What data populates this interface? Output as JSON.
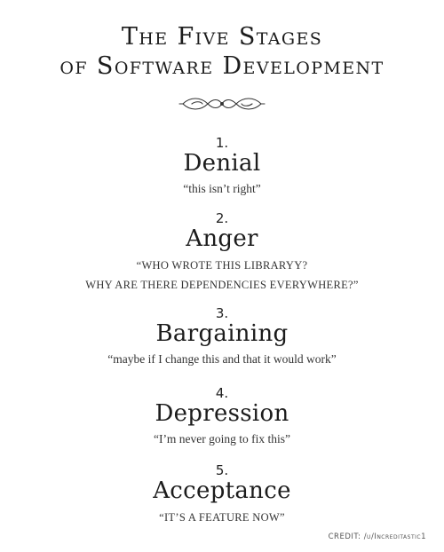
{
  "header": {
    "title_line_1": "The Five Stages",
    "title_line_2": "of Software Development",
    "ornament_icon": "flourish-ornament-icon"
  },
  "stages": [
    {
      "number": "1.",
      "name": "Denial",
      "quote": "“this isn’t right”"
    },
    {
      "number": "2.",
      "name": "Anger",
      "quote_line_1": "“WHO WROTE THIS LIBRARYY?",
      "quote_line_2": "WHY ARE THERE DEPENDENCIES EVERYWHERE?”"
    },
    {
      "number": "3.",
      "name": "Bargaining",
      "quote": "“maybe if I change this and that it would work”"
    },
    {
      "number": "4.",
      "name": "Depression",
      "quote": "“I’m never going to fix this”"
    },
    {
      "number": "5.",
      "name": "Acceptance",
      "quote": "“IT’S A FEATURE NOW”"
    }
  ],
  "footer": {
    "credit": "CREDIT: /u/Increditastic1"
  },
  "colors": {
    "text": "#1c1c1c",
    "background": "#ffffff"
  }
}
